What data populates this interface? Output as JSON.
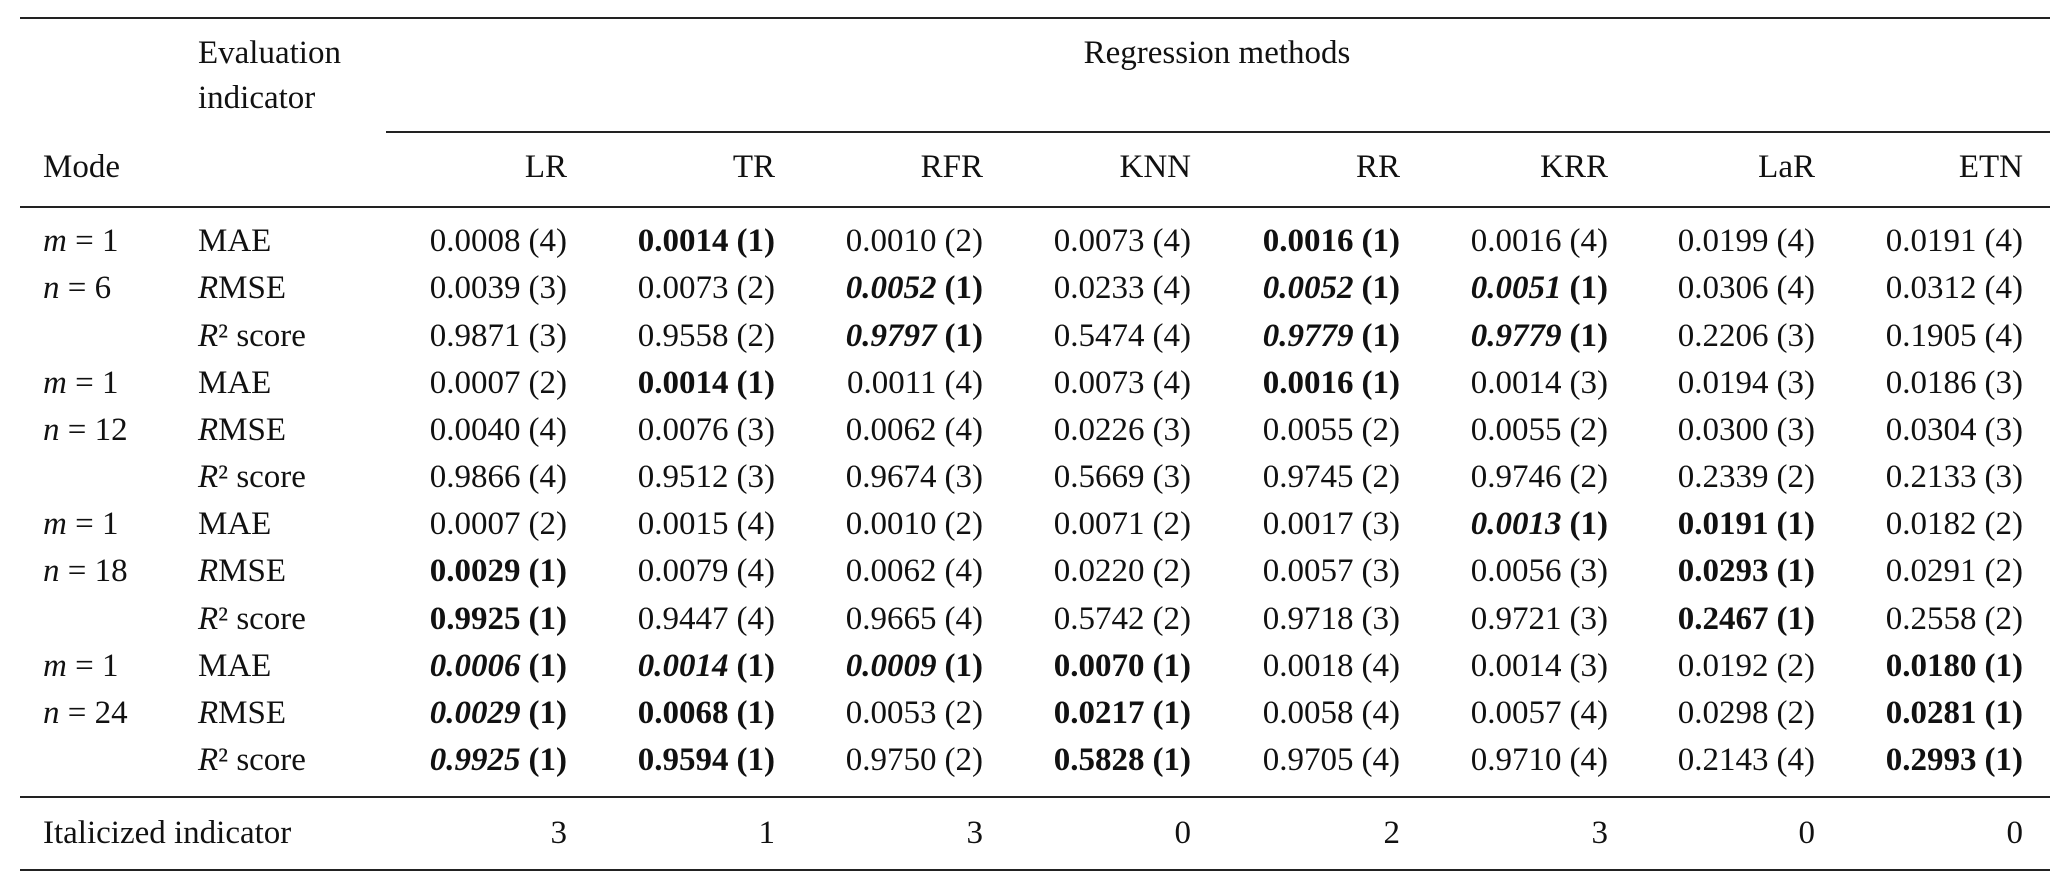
{
  "header": {
    "mode": "Mode",
    "indicator": "Evaluation indicator",
    "methods_title": "Regression methods",
    "methods": [
      "LR",
      "TR",
      "RFR",
      "KNN",
      "RR",
      "KRR",
      "LaR",
      "ETN"
    ]
  },
  "groups": [
    {
      "mode": [
        "m = 1",
        "n = 6"
      ],
      "rows": [
        {
          "indicator": "MAE",
          "cells": [
            [
              "0.0008",
              "(4)",
              "normal"
            ],
            [
              "0.0014",
              "(1)",
              "bold"
            ],
            [
              "0.0010",
              "(2)",
              "normal"
            ],
            [
              "0.0073",
              "(4)",
              "normal"
            ],
            [
              "0.0016",
              "(1)",
              "bold"
            ],
            [
              "0.0016",
              "(4)",
              "normal"
            ],
            [
              "0.0199",
              "(4)",
              "normal"
            ],
            [
              "0.0191",
              "(4)",
              "normal"
            ]
          ]
        },
        {
          "indicator": "RMSE",
          "cells": [
            [
              "0.0039",
              "(3)",
              "normal"
            ],
            [
              "0.0073",
              "(2)",
              "normal"
            ],
            [
              "0.0052",
              "(1)",
              "bold-italic"
            ],
            [
              "0.0233",
              "(4)",
              "normal"
            ],
            [
              "0.0052",
              "(1)",
              "bold-italic"
            ],
            [
              "0.0051",
              "(1)",
              "bold-italic"
            ],
            [
              "0.0306",
              "(4)",
              "normal"
            ],
            [
              "0.0312",
              "(4)",
              "normal"
            ]
          ]
        },
        {
          "indicator": "R² score",
          "cells": [
            [
              "0.9871",
              "(3)",
              "normal"
            ],
            [
              "0.9558",
              "(2)",
              "normal"
            ],
            [
              "0.9797",
              "(1)",
              "bold-italic"
            ],
            [
              "0.5474",
              "(4)",
              "normal"
            ],
            [
              "0.9779",
              "(1)",
              "bold-italic"
            ],
            [
              "0.9779",
              "(1)",
              "bold-italic"
            ],
            [
              "0.2206",
              "(3)",
              "normal"
            ],
            [
              "0.1905",
              "(4)",
              "normal"
            ]
          ]
        }
      ]
    },
    {
      "mode": [
        "m = 1",
        "n = 12"
      ],
      "rows": [
        {
          "indicator": "MAE",
          "cells": [
            [
              "0.0007",
              "(2)",
              "normal"
            ],
            [
              "0.0014",
              "(1)",
              "bold"
            ],
            [
              "0.0011",
              "(4)",
              "normal"
            ],
            [
              "0.0073",
              "(4)",
              "normal"
            ],
            [
              "0.0016",
              "(1)",
              "bold"
            ],
            [
              "0.0014",
              "(3)",
              "normal"
            ],
            [
              "0.0194",
              "(3)",
              "normal"
            ],
            [
              "0.0186",
              "(3)",
              "normal"
            ]
          ]
        },
        {
          "indicator": "RMSE",
          "cells": [
            [
              "0.0040",
              "(4)",
              "normal"
            ],
            [
              "0.0076",
              "(3)",
              "normal"
            ],
            [
              "0.0062",
              "(4)",
              "normal"
            ],
            [
              "0.0226",
              "(3)",
              "normal"
            ],
            [
              "0.0055",
              "(2)",
              "normal"
            ],
            [
              "0.0055",
              "(2)",
              "normal"
            ],
            [
              "0.0300",
              "(3)",
              "normal"
            ],
            [
              "0.0304",
              "(3)",
              "normal"
            ]
          ]
        },
        {
          "indicator": "R² score",
          "cells": [
            [
              "0.9866",
              "(4)",
              "normal"
            ],
            [
              "0.9512",
              "(3)",
              "normal"
            ],
            [
              "0.9674",
              "(3)",
              "normal"
            ],
            [
              "0.5669",
              "(3)",
              "normal"
            ],
            [
              "0.9745",
              "(2)",
              "normal"
            ],
            [
              "0.9746",
              "(2)",
              "normal"
            ],
            [
              "0.2339",
              "(2)",
              "normal"
            ],
            [
              "0.2133",
              "(3)",
              "normal"
            ]
          ]
        }
      ]
    },
    {
      "mode": [
        "m = 1",
        "n = 18"
      ],
      "rows": [
        {
          "indicator": "MAE",
          "cells": [
            [
              "0.0007",
              "(2)",
              "normal"
            ],
            [
              "0.0015",
              "(4)",
              "normal"
            ],
            [
              "0.0010",
              "(2)",
              "normal"
            ],
            [
              "0.0071",
              "(2)",
              "normal"
            ],
            [
              "0.0017",
              "(3)",
              "normal"
            ],
            [
              "0.0013",
              "(1)",
              "bold-italic"
            ],
            [
              "0.0191",
              "(1)",
              "bold"
            ],
            [
              "0.0182",
              "(2)",
              "normal"
            ]
          ]
        },
        {
          "indicator": "RMSE",
          "cells": [
            [
              "0.0029",
              "(1)",
              "bold"
            ],
            [
              "0.0079",
              "(4)",
              "normal"
            ],
            [
              "0.0062",
              "(4)",
              "normal"
            ],
            [
              "0.0220",
              "(2)",
              "normal"
            ],
            [
              "0.0057",
              "(3)",
              "normal"
            ],
            [
              "0.0056",
              "(3)",
              "normal"
            ],
            [
              "0.0293",
              "(1)",
              "bold"
            ],
            [
              "0.0291",
              "(2)",
              "normal"
            ]
          ]
        },
        {
          "indicator": "R² score",
          "cells": [
            [
              "0.9925",
              "(1)",
              "bold"
            ],
            [
              "0.9447",
              "(4)",
              "normal"
            ],
            [
              "0.9665",
              "(4)",
              "normal"
            ],
            [
              "0.5742",
              "(2)",
              "normal"
            ],
            [
              "0.9718",
              "(3)",
              "normal"
            ],
            [
              "0.9721",
              "(3)",
              "normal"
            ],
            [
              "0.2467",
              "(1)",
              "bold"
            ],
            [
              "0.2558",
              "(2)",
              "normal"
            ]
          ]
        }
      ]
    },
    {
      "mode": [
        "m = 1",
        "n = 24"
      ],
      "rows": [
        {
          "indicator": "MAE",
          "cells": [
            [
              "0.0006",
              "(1)",
              "bold-italic"
            ],
            [
              "0.0014",
              "(1)",
              "bold-italic"
            ],
            [
              "0.0009",
              "(1)",
              "bold-italic"
            ],
            [
              "0.0070",
              "(1)",
              "bold"
            ],
            [
              "0.0018",
              "(4)",
              "normal"
            ],
            [
              "0.0014",
              "(3)",
              "normal"
            ],
            [
              "0.0192",
              "(2)",
              "normal"
            ],
            [
              "0.0180",
              "(1)",
              "bold"
            ]
          ]
        },
        {
          "indicator": "RMSE",
          "cells": [
            [
              "0.0029",
              "(1)",
              "bold-italic"
            ],
            [
              "0.0068",
              "(1)",
              "bold"
            ],
            [
              "0.0053",
              "(2)",
              "normal"
            ],
            [
              "0.0217",
              "(1)",
              "bold"
            ],
            [
              "0.0058",
              "(4)",
              "normal"
            ],
            [
              "0.0057",
              "(4)",
              "normal"
            ],
            [
              "0.0298",
              "(2)",
              "normal"
            ],
            [
              "0.0281",
              "(1)",
              "bold"
            ]
          ]
        },
        {
          "indicator": "R² score",
          "cells": [
            [
              "0.9925",
              "(1)",
              "bold-italic"
            ],
            [
              "0.9594",
              "(1)",
              "bold"
            ],
            [
              "0.9750",
              "(2)",
              "normal"
            ],
            [
              "0.5828",
              "(1)",
              "bold"
            ],
            [
              "0.9705",
              "(4)",
              "normal"
            ],
            [
              "0.9710",
              "(4)",
              "normal"
            ],
            [
              "0.2143",
              "(4)",
              "normal"
            ],
            [
              "0.2993",
              "(1)",
              "bold"
            ]
          ]
        }
      ]
    }
  ],
  "footer": {
    "label": "Italicized indicator",
    "counts": [
      3,
      1,
      3,
      0,
      2,
      3,
      0,
      0
    ]
  }
}
